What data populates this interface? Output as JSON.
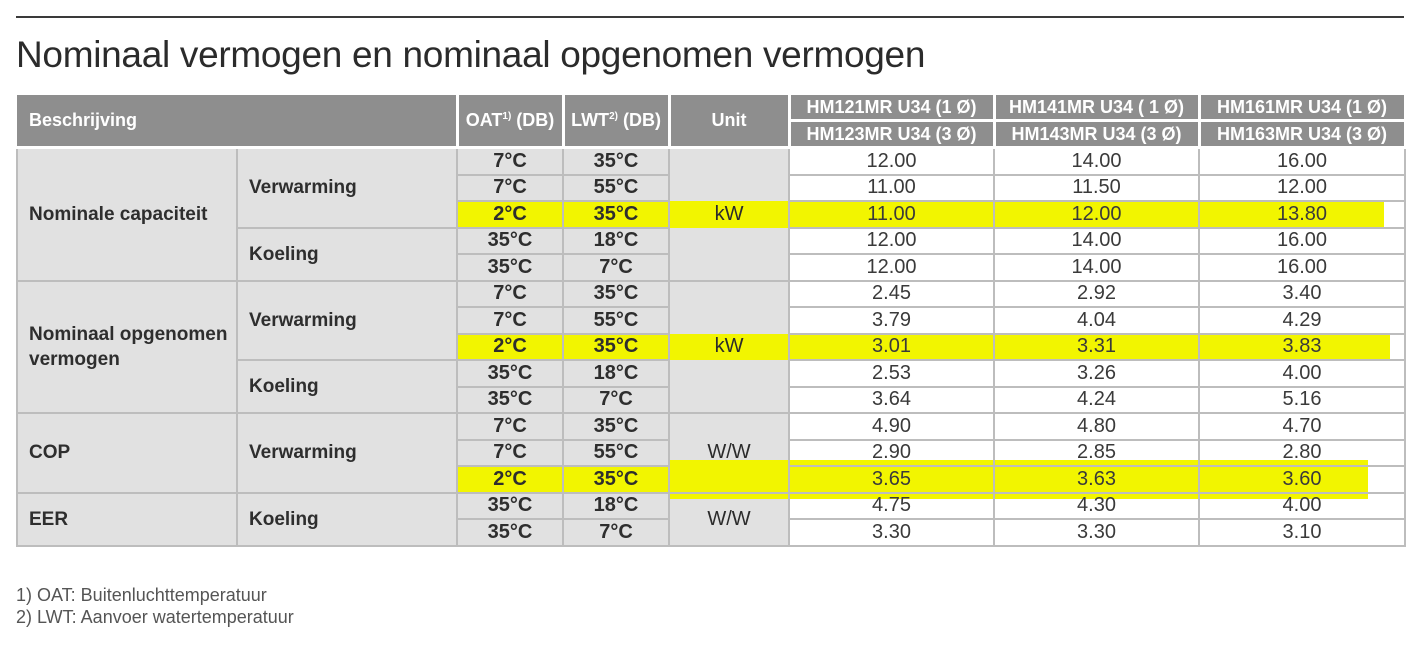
{
  "title": "Nominaal vermogen en nominaal opgenomen vermogen",
  "header": {
    "description": "Beschrijving",
    "oat": "OAT",
    "oat_sup": "1)",
    "oat_suffix": " (DB)",
    "lwt": "LWT",
    "lwt_sup": "2)",
    "lwt_suffix": " (DB)",
    "unit": "Unit",
    "models_top": [
      "HM121MR U34 (1 Ø)",
      "HM141MR U34 ( 1 Ø)",
      "HM161MR U34 (1 Ø)"
    ],
    "models_bottom": [
      "HM123MR U34 (3 Ø)",
      "HM143MR U34 (3 Ø)",
      "HM163MR U34 (3 Ø)"
    ]
  },
  "groups": [
    {
      "label": "Nominale capaciteit",
      "unit": "kW",
      "modes": [
        {
          "label": "Verwarming",
          "rows": [
            {
              "oat": "7°C",
              "lwt": "35°C",
              "values": [
                "12.00",
                "14.00",
                "16.00"
              ]
            },
            {
              "oat": "7°C",
              "lwt": "55°C",
              "values": [
                "11.00",
                "11.50",
                "12.00"
              ]
            },
            {
              "oat": "2°C",
              "lwt": "35°C",
              "values": [
                "11.00",
                "12.00",
                "13.80"
              ],
              "highlight": true
            }
          ]
        },
        {
          "label": "Koeling",
          "rows": [
            {
              "oat": "35°C",
              "lwt": "18°C",
              "values": [
                "12.00",
                "14.00",
                "16.00"
              ]
            },
            {
              "oat": "35°C",
              "lwt": "7°C",
              "values": [
                "12.00",
                "14.00",
                "16.00"
              ]
            }
          ]
        }
      ]
    },
    {
      "label": "Nominaal opgenomen vermogen",
      "unit": "kW",
      "modes": [
        {
          "label": "Verwarming",
          "rows": [
            {
              "oat": "7°C",
              "lwt": "35°C",
              "values": [
                "2.45",
                "2.92",
                "3.40"
              ]
            },
            {
              "oat": "7°C",
              "lwt": "55°C",
              "values": [
                "3.79",
                "4.04",
                "4.29"
              ]
            },
            {
              "oat": "2°C",
              "lwt": "35°C",
              "values": [
                "3.01",
                "3.31",
                "3.83"
              ],
              "highlight": true
            }
          ]
        },
        {
          "label": "Koeling",
          "rows": [
            {
              "oat": "35°C",
              "lwt": "18°C",
              "values": [
                "2.53",
                "3.26",
                "4.00"
              ]
            },
            {
              "oat": "35°C",
              "lwt": "7°C",
              "values": [
                "3.64",
                "4.24",
                "5.16"
              ]
            }
          ]
        }
      ]
    },
    {
      "label": "COP",
      "unit": "W/W",
      "modes": [
        {
          "label": "Verwarming",
          "rows": [
            {
              "oat": "7°C",
              "lwt": "35°C",
              "values": [
                "4.90",
                "4.80",
                "4.70"
              ]
            },
            {
              "oat": "7°C",
              "lwt": "55°C",
              "values": [
                "2.90",
                "2.85",
                "2.80"
              ]
            },
            {
              "oat": "2°C",
              "lwt": "35°C",
              "values": [
                "3.65",
                "3.63",
                "3.60"
              ],
              "highlight": true
            }
          ]
        }
      ]
    },
    {
      "label": "EER",
      "unit": "W/W",
      "modes": [
        {
          "label": "Koeling",
          "rows": [
            {
              "oat": "35°C",
              "lwt": "18°C",
              "values": [
                "4.75",
                "4.30",
                "4.00"
              ]
            },
            {
              "oat": "35°C",
              "lwt": "7°C",
              "values": [
                "3.30",
                "3.30",
                "3.10"
              ]
            }
          ]
        }
      ]
    }
  ],
  "footnotes": [
    "1) OAT: Buitenluchttemperatuur",
    "2) LWT: Aanvoer watertemperatuur"
  ],
  "colors": {
    "header": "#8e8e8e",
    "cell_grey": "#e1e1e1",
    "highlight": "#f2f500"
  }
}
